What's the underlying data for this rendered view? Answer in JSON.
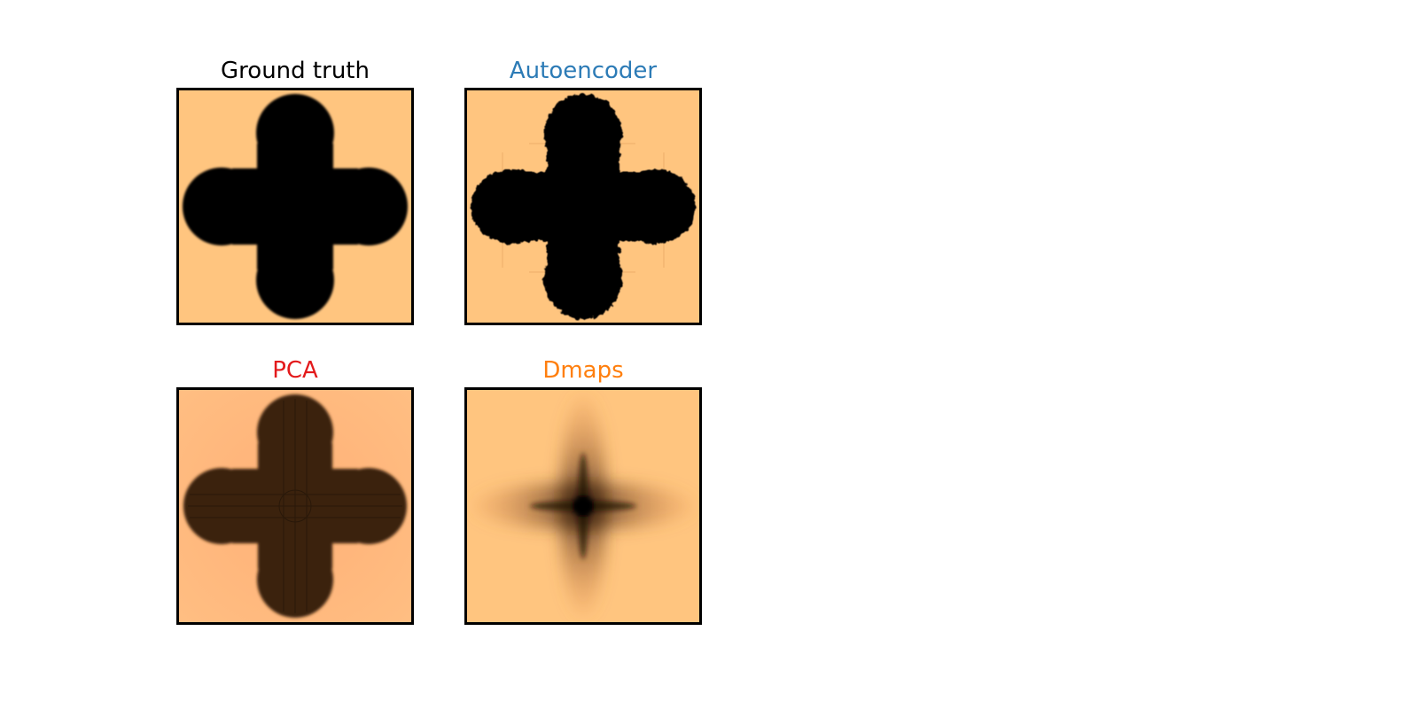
{
  "colors": {
    "background_orange": "#ffc57f",
    "pca_background": "#ffb077",
    "pca_shape": "#3a2410",
    "autoencoder_title": "#2c7bb6",
    "pca_title": "#e31a1c",
    "dmaps_title": "#ff7f0e",
    "ground_truth_title": "#000000"
  },
  "panels": [
    {
      "id": "ground-truth",
      "title": "Ground truth"
    },
    {
      "id": "autoencoder",
      "title": "Autoencoder"
    },
    {
      "id": "pca",
      "title": "PCA"
    },
    {
      "id": "dmaps",
      "title": "Dmaps"
    }
  ]
}
